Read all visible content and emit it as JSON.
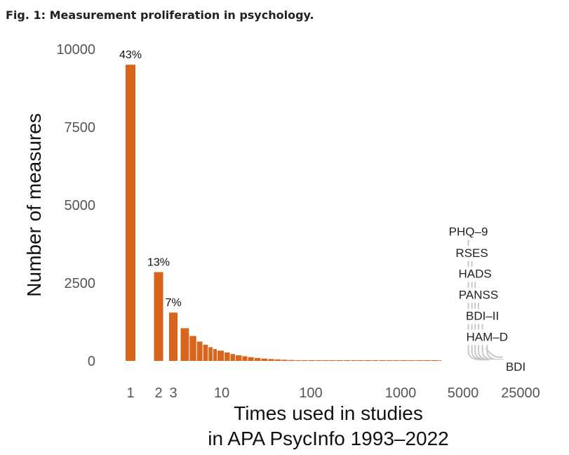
{
  "figure": {
    "title": "Fig. 1: Measurement proliferation in psychology."
  },
  "chart_data": {
    "type": "bar",
    "xscale": "log",
    "xlabel_line1": "Times used in studies",
    "xlabel_line2": "in APA PsycInfo 1993–2022",
    "ylabel": "Number of measures",
    "ylim": [
      0,
      10000
    ],
    "yticks": [
      "10000",
      "7500",
      "5000",
      "2500",
      "0"
    ],
    "ytick_values": [
      10000,
      7500,
      5000,
      2500,
      0
    ],
    "xticks": [
      "1",
      "2",
      "3",
      "10",
      "100",
      "1000",
      "5000",
      "25000"
    ],
    "xtick_values": [
      1,
      2,
      3,
      10,
      100,
      1000,
      5000,
      25000
    ],
    "bar_color": "#d9641c",
    "line_color": "#c8c8c8",
    "bars": [
      {
        "x": 1,
        "value": 9500,
        "label": "43%"
      },
      {
        "x": 2,
        "value": 2850,
        "label": "13%"
      },
      {
        "x": 3,
        "value": 1550,
        "label": "7%"
      },
      {
        "x": 4,
        "value": 1050,
        "label": ""
      },
      {
        "x": 5,
        "value": 800,
        "label": ""
      },
      {
        "x": 6,
        "value": 620,
        "label": ""
      },
      {
        "x": 7,
        "value": 520,
        "label": ""
      },
      {
        "x": 8,
        "value": 440,
        "label": ""
      },
      {
        "x": 9,
        "value": 380,
        "label": ""
      },
      {
        "x": 10,
        "value": 330,
        "label": ""
      },
      {
        "x": 12,
        "value": 270,
        "label": ""
      },
      {
        "x": 14,
        "value": 220,
        "label": ""
      },
      {
        "x": 16,
        "value": 180,
        "label": ""
      },
      {
        "x": 19,
        "value": 150,
        "label": ""
      },
      {
        "x": 22,
        "value": 120,
        "label": ""
      },
      {
        "x": 26,
        "value": 95,
        "label": ""
      },
      {
        "x": 31,
        "value": 75,
        "label": ""
      },
      {
        "x": 37,
        "value": 60,
        "label": ""
      },
      {
        "x": 44,
        "value": 48,
        "label": ""
      },
      {
        "x": 52,
        "value": 38,
        "label": ""
      },
      {
        "x": 62,
        "value": 30,
        "label": ""
      },
      {
        "x": 74,
        "value": 24,
        "label": ""
      },
      {
        "x": 88,
        "value": 19,
        "label": ""
      },
      {
        "x": 105,
        "value": 15,
        "label": ""
      },
      {
        "x": 125,
        "value": 12,
        "label": ""
      },
      {
        "x": 150,
        "value": 10,
        "label": ""
      },
      {
        "x": 180,
        "value": 8,
        "label": ""
      },
      {
        "x": 215,
        "value": 6,
        "label": ""
      },
      {
        "x": 260,
        "value": 5,
        "label": ""
      },
      {
        "x": 310,
        "value": 4,
        "label": ""
      },
      {
        "x": 370,
        "value": 3,
        "label": ""
      },
      {
        "x": 440,
        "value": 3,
        "label": ""
      },
      {
        "x": 530,
        "value": 2,
        "label": ""
      },
      {
        "x": 640,
        "value": 2,
        "label": ""
      },
      {
        "x": 770,
        "value": 2,
        "label": ""
      },
      {
        "x": 920,
        "value": 1,
        "label": ""
      },
      {
        "x": 1100,
        "value": 1,
        "label": ""
      },
      {
        "x": 1350,
        "value": 1,
        "label": ""
      },
      {
        "x": 1650,
        "value": 1,
        "label": ""
      },
      {
        "x": 2000,
        "value": 1,
        "label": ""
      },
      {
        "x": 2450,
        "value": 1,
        "label": ""
      },
      {
        "x": 3000,
        "value": 1,
        "label": ""
      }
    ],
    "labeled_measures": [
      {
        "name": "PHQ–9",
        "x": 5800,
        "label_y": 4150
      },
      {
        "name": "RSES",
        "x": 6400,
        "label_y": 3470
      },
      {
        "name": "HADS",
        "x": 7000,
        "label_y": 2800
      },
      {
        "name": "PANSS",
        "x": 7700,
        "label_y": 2130
      },
      {
        "name": "BDI–II",
        "x": 8600,
        "label_y": 1450
      },
      {
        "name": "HAM–D",
        "x": 9800,
        "label_y": 780
      },
      {
        "name": "BDI",
        "x": 14000,
        "label_y": -180
      }
    ]
  }
}
